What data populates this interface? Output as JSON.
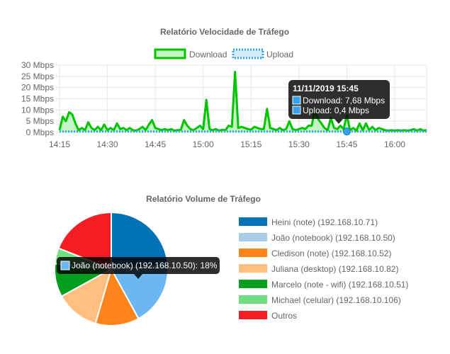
{
  "chart_data": [
    {
      "type": "area",
      "title": "Relatório Velocidade de Tráfego",
      "y_unit": "Mbps",
      "ylim": [
        0,
        30
      ],
      "y_ticks": [
        0,
        5,
        10,
        15,
        20,
        25,
        30
      ],
      "y_tick_labels": [
        "0 Mbps",
        "5 Mbps",
        "10 Mbps",
        "15 Mbps",
        "20 Mbps",
        "25 Mbps",
        "30 Mbps"
      ],
      "x_range": [
        "14:15",
        "16:10"
      ],
      "x_ticks": [
        "14:15",
        "14:30",
        "14:45",
        "15:00",
        "15:15",
        "15:30",
        "15:45",
        "16:00"
      ],
      "grid": true,
      "legend": "top",
      "series": [
        {
          "name": "Download",
          "color": "#00c400",
          "fill": "#c2f5c2",
          "points": [
            [
              "14:15",
              1
            ],
            [
              "14:16",
              7
            ],
            [
              "14:17",
              5
            ],
            [
              "14:18",
              9
            ],
            [
              "14:19",
              8
            ],
            [
              "14:20",
              4
            ],
            [
              "14:21",
              1
            ],
            [
              "14:22",
              2
            ],
            [
              "14:23",
              1
            ],
            [
              "14:24",
              4.5
            ],
            [
              "14:25",
              2
            ],
            [
              "14:26",
              1
            ],
            [
              "14:27",
              2.5
            ],
            [
              "14:28",
              1
            ],
            [
              "14:29",
              3.5
            ],
            [
              "14:30",
              1
            ],
            [
              "14:31",
              2
            ],
            [
              "14:32",
              1
            ],
            [
              "14:33",
              4
            ],
            [
              "14:34",
              1.5
            ],
            [
              "14:35",
              2
            ],
            [
              "14:36",
              1
            ],
            [
              "14:37",
              2
            ],
            [
              "14:38",
              1
            ],
            [
              "14:39",
              0.8
            ],
            [
              "14:40",
              1.5
            ],
            [
              "14:41",
              2.5
            ],
            [
              "14:42",
              1
            ],
            [
              "14:43",
              3.5
            ],
            [
              "14:44",
              5.5
            ],
            [
              "14:45",
              2
            ],
            [
              "14:46",
              1.5
            ],
            [
              "14:47",
              1
            ],
            [
              "14:48",
              1.5
            ],
            [
              "14:49",
              1
            ],
            [
              "14:50",
              1.5
            ],
            [
              "14:51",
              0.8
            ],
            [
              "14:52",
              1
            ],
            [
              "14:53",
              1.2
            ],
            [
              "14:54",
              5.5
            ],
            [
              "14:55",
              3
            ],
            [
              "14:56",
              1.5
            ],
            [
              "14:57",
              1
            ],
            [
              "14:58",
              2
            ],
            [
              "14:59",
              3
            ],
            [
              "15:00",
              1.5
            ],
            [
              "15:01",
              14.5
            ],
            [
              "15:02",
              1.5
            ],
            [
              "15:03",
              1
            ],
            [
              "15:04",
              1.5
            ],
            [
              "15:05",
              0.8
            ],
            [
              "15:06",
              1.2
            ],
            [
              "15:07",
              1
            ],
            [
              "15:08",
              3
            ],
            [
              "15:09",
              2.5
            ],
            [
              "15:10",
              27
            ],
            [
              "15:11",
              2
            ],
            [
              "15:12",
              2.5
            ],
            [
              "15:13",
              2
            ],
            [
              "15:14",
              1.5
            ],
            [
              "15:15",
              1.2
            ],
            [
              "15:16",
              2.5
            ],
            [
              "15:17",
              2
            ],
            [
              "15:18",
              1.5
            ],
            [
              "15:19",
              1.5
            ],
            [
              "15:20",
              10.5
            ],
            [
              "15:21",
              2
            ],
            [
              "15:22",
              1.5
            ],
            [
              "15:23",
              1
            ],
            [
              "15:24",
              2
            ],
            [
              "15:25",
              1
            ],
            [
              "15:26",
              1.5
            ],
            [
              "15:27",
              5
            ],
            [
              "15:28",
              1.5
            ],
            [
              "15:29",
              1
            ],
            [
              "15:30",
              1.5
            ],
            [
              "15:31",
              2
            ],
            [
              "15:32",
              1.5
            ],
            [
              "15:33",
              3
            ],
            [
              "15:34",
              3
            ],
            [
              "15:35",
              10
            ],
            [
              "15:36",
              6
            ],
            [
              "15:37",
              4
            ],
            [
              "15:38",
              2
            ],
            [
              "15:39",
              1
            ],
            [
              "15:40",
              6.5
            ],
            [
              "15:41",
              2
            ],
            [
              "15:42",
              1.5
            ],
            [
              "15:43",
              3
            ],
            [
              "15:44",
              1.5
            ],
            [
              "15:45",
              7.68
            ],
            [
              "15:46",
              1
            ],
            [
              "15:47",
              2
            ],
            [
              "15:48",
              0.8
            ],
            [
              "15:49",
              4
            ],
            [
              "15:50",
              1
            ],
            [
              "15:51",
              4
            ],
            [
              "15:52",
              1
            ],
            [
              "15:53",
              2.5
            ],
            [
              "15:54",
              1
            ],
            [
              "15:55",
              2
            ],
            [
              "15:56",
              1.5
            ],
            [
              "15:57",
              1
            ],
            [
              "15:58",
              0.8
            ],
            [
              "15:59",
              1
            ],
            [
              "16:00",
              0.8
            ],
            [
              "16:01",
              1
            ],
            [
              "16:02",
              0.8
            ],
            [
              "16:03",
              1
            ],
            [
              "16:04",
              0.8
            ],
            [
              "16:05",
              1
            ],
            [
              "16:06",
              1.5
            ],
            [
              "16:07",
              0.8
            ],
            [
              "16:08",
              1.5
            ],
            [
              "16:09",
              0.8
            ],
            [
              "16:10",
              1
            ]
          ]
        },
        {
          "name": "Upload",
          "color": "#36a2eb",
          "fill": "#d6ecfa",
          "dashed": true,
          "points": [
            [
              "14:15",
              0.4
            ],
            [
              "14:30",
              0.4
            ],
            [
              "14:45",
              0.4
            ],
            [
              "15:00",
              0.4
            ],
            [
              "15:15",
              0.4
            ],
            [
              "15:30",
              0.4
            ],
            [
              "15:45",
              0.4
            ],
            [
              "16:00",
              0.4
            ],
            [
              "16:10",
              0.4
            ]
          ]
        }
      ],
      "tooltip": {
        "title": "11/11/2019 15:45",
        "lines": [
          {
            "text": "Download: 7,68 Mbps",
            "color": "#36a2eb"
          },
          {
            "text": "Upload: 0,4 Mbps",
            "color": "#36a2eb"
          }
        ],
        "x": "15:45",
        "y": 0.4
      }
    },
    {
      "type": "pie",
      "title": "Relatório Volume de Tráfego",
      "legend": "right",
      "slices": [
        {
          "label": "Heini (note) (192.168.10.71)",
          "value": 24,
          "color": "#0073b7"
        },
        {
          "label": "João (notebook) (192.168.10.50)",
          "value": 18,
          "color": "#a9cce8",
          "highlight": "#6bb7f2"
        },
        {
          "label": "Cledison (note) (192.168.10.52)",
          "value": 12.5,
          "color": "#ff851b"
        },
        {
          "label": "Juliana (desktop) (192.168.10.82)",
          "value": 12.5,
          "color": "#ffbf80"
        },
        {
          "label": "Marcelo (note - wifi) (192.168.10.51)",
          "value": 9.5,
          "color": "#00a01e"
        },
        {
          "label": "Michael (celular) (192.168.10.106)",
          "value": 4.5,
          "color": "#6fdd80"
        },
        {
          "label": "Outros",
          "value": 19,
          "color": "#f51d24"
        }
      ],
      "tooltip": {
        "text": "João (notebook) (192.168.10.50): 18%",
        "color": "#6bb7f2"
      }
    }
  ]
}
